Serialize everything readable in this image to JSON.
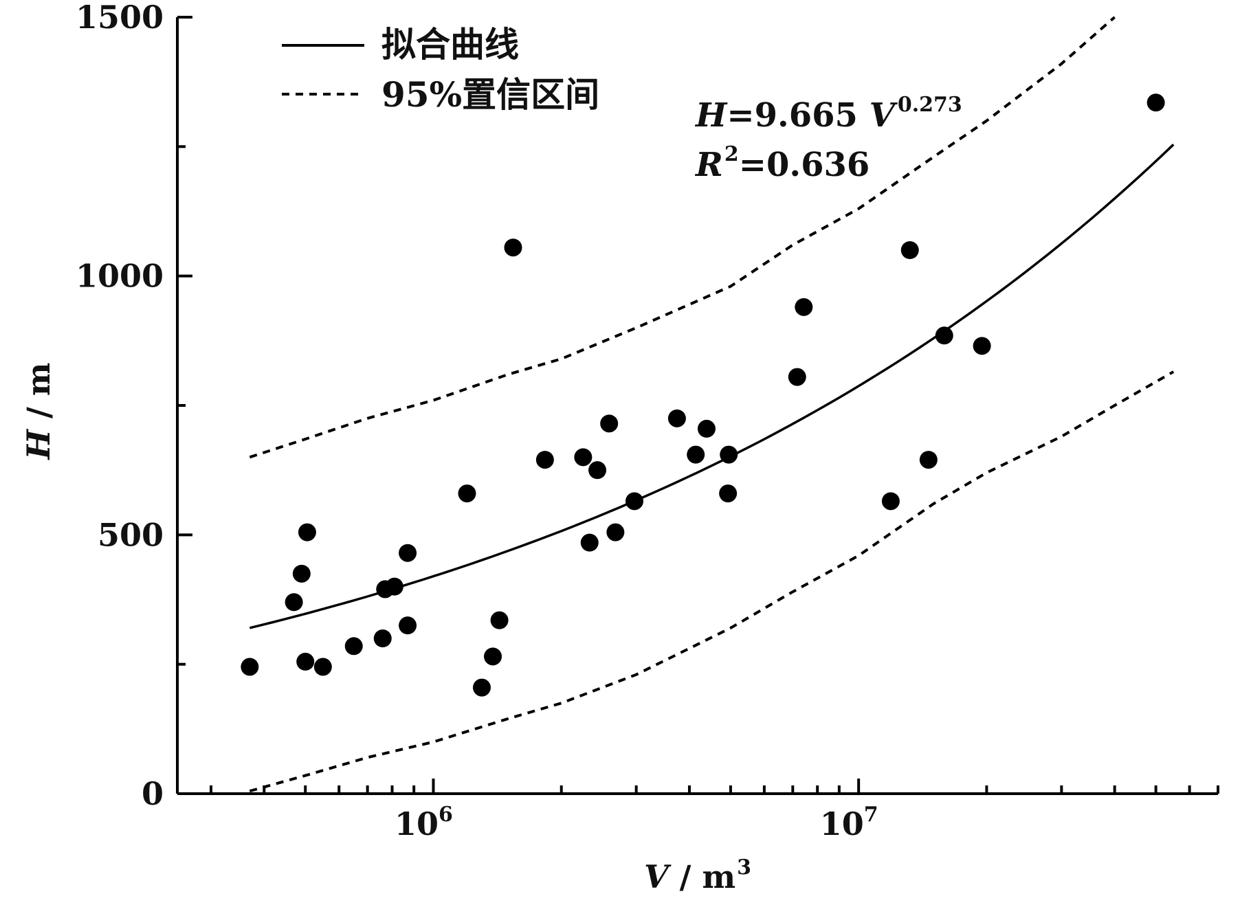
{
  "chart_data": {
    "type": "scatter",
    "title": "",
    "xlabel": {
      "var": "V",
      "unit": "m",
      "unit_sup": "3"
    },
    "ylabel": {
      "var": "H",
      "unit": "m"
    },
    "x_scale": "log",
    "xlim": [
      250000,
      70000000
    ],
    "ylim": [
      0,
      1500
    ],
    "y_ticks": [
      0,
      500,
      1000,
      1500
    ],
    "x_tick_labels": [
      {
        "value": 1000000,
        "base": "10",
        "exp": "6"
      },
      {
        "value": 10000000,
        "base": "10",
        "exp": "7"
      }
    ],
    "legend": {
      "placement": "top-left",
      "items": [
        {
          "label": "拟合曲线",
          "style": "solid"
        },
        {
          "label": "95%置信区间",
          "style": "dashed"
        }
      ]
    },
    "equation": {
      "lhs": "H",
      "eq": "=9.665 ",
      "var": "V",
      "exponent": "0.273",
      "r_var": "R",
      "r_sup": "2",
      "r_value": "=0.636"
    },
    "fit": {
      "a": 9.665,
      "b": 0.273,
      "x_range": [
        370000,
        55000000
      ]
    },
    "confidence_upper": {
      "x": [
        370000,
        500000,
        700000,
        1000000,
        1500000,
        2000000,
        3000000,
        5000000,
        7000000,
        10000000,
        15000000,
        20000000,
        30000000,
        40000000
      ],
      "y": [
        650,
        685,
        725,
        760,
        810,
        840,
        900,
        980,
        1060,
        1130,
        1230,
        1300,
        1410,
        1500
      ]
    },
    "confidence_lower": {
      "x": [
        370000,
        500000,
        700000,
        1000000,
        1500000,
        2000000,
        3000000,
        5000000,
        7000000,
        10000000,
        15000000,
        20000000,
        30000000,
        40000000,
        55000000
      ],
      "y": [
        5,
        35,
        70,
        100,
        145,
        175,
        230,
        320,
        390,
        460,
        560,
        620,
        690,
        750,
        815
      ]
    },
    "points": [
      {
        "x": 370000,
        "y": 245
      },
      {
        "x": 470000,
        "y": 370
      },
      {
        "x": 490000,
        "y": 425
      },
      {
        "x": 500000,
        "y": 255
      },
      {
        "x": 505000,
        "y": 505
      },
      {
        "x": 550000,
        "y": 245
      },
      {
        "x": 650000,
        "y": 285
      },
      {
        "x": 760000,
        "y": 300
      },
      {
        "x": 770000,
        "y": 395
      },
      {
        "x": 810000,
        "y": 400
      },
      {
        "x": 870000,
        "y": 325
      },
      {
        "x": 870000,
        "y": 465
      },
      {
        "x": 1200000,
        "y": 580
      },
      {
        "x": 1300000,
        "y": 205
      },
      {
        "x": 1380000,
        "y": 265
      },
      {
        "x": 1430000,
        "y": 335
      },
      {
        "x": 1540000,
        "y": 1055
      },
      {
        "x": 1830000,
        "y": 645
      },
      {
        "x": 2250000,
        "y": 650
      },
      {
        "x": 2330000,
        "y": 485
      },
      {
        "x": 2430000,
        "y": 625
      },
      {
        "x": 2590000,
        "y": 715
      },
      {
        "x": 2680000,
        "y": 505
      },
      {
        "x": 2970000,
        "y": 565
      },
      {
        "x": 3740000,
        "y": 725
      },
      {
        "x": 4140000,
        "y": 655
      },
      {
        "x": 4390000,
        "y": 705
      },
      {
        "x": 4930000,
        "y": 580
      },
      {
        "x": 4950000,
        "y": 655
      },
      {
        "x": 7170000,
        "y": 805
      },
      {
        "x": 7430000,
        "y": 940
      },
      {
        "x": 11900000,
        "y": 565
      },
      {
        "x": 13200000,
        "y": 1050
      },
      {
        "x": 14600000,
        "y": 645
      },
      {
        "x": 15900000,
        "y": 885
      },
      {
        "x": 19500000,
        "y": 865
      },
      {
        "x": 50000000,
        "y": 1335
      }
    ]
  }
}
